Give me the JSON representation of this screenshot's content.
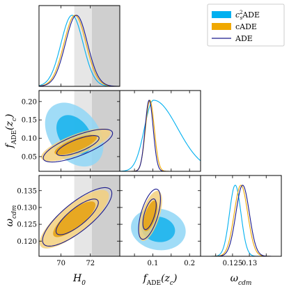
{
  "chart_data": {
    "type": "triangle-corner",
    "title": "",
    "parameters": [
      {
        "id": "H0",
        "label_main": "H",
        "label_sub": "0",
        "range": [
          68.5,
          74.0
        ],
        "ticks": [
          70,
          72
        ],
        "tick_labels": [
          "70",
          "72"
        ]
      },
      {
        "id": "fADE",
        "label_main": "f",
        "label_sub": "ADE",
        "label_tail": "(z",
        "label_tail_sub": "c",
        "label_end": ")",
        "range": [
          0.01,
          0.23
        ],
        "ticks": [
          0.05,
          0.1,
          0.15,
          0.2
        ],
        "tick_labels": [
          "0.05",
          "0.10",
          "0.15",
          "0.20"
        ],
        "x_tick_labels": [
          "",
          "0.1",
          "",
          "0.2"
        ]
      },
      {
        "id": "wcdm",
        "label_main": "ω",
        "label_sub": "cdm",
        "range": [
          0.1155,
          0.1395
        ],
        "ticks": [
          0.12,
          0.125,
          0.13,
          0.135
        ],
        "tick_labels": [
          "0.120",
          "0.125",
          "0.130",
          "0.135"
        ],
        "x_tick_labels": [
          "",
          "0.125",
          "0.13",
          ""
        ]
      }
    ],
    "bands": [
      {
        "param": "H0",
        "from": 70.9,
        "to": 72.1,
        "color": "#e6e6e6"
      },
      {
        "param": "H0",
        "from": 72.1,
        "to": 74.0,
        "color": "#cfcfcf"
      }
    ],
    "legend": {
      "position": "top-right",
      "entries": [
        {
          "label_main": "c",
          "label_sub": "s",
          "label_sup": "2",
          "label_tail": "ADE",
          "color": "#00b0f0",
          "style": "filled"
        },
        {
          "label_main": "cADE",
          "color": "#f0a800",
          "style": "filled"
        },
        {
          "label_main": "ADE",
          "color": "#1a1a8c",
          "style": "line"
        }
      ]
    },
    "series": [
      {
        "id": "cs2ADE",
        "color": "#00b0f0",
        "fill_outer": "#8fd6f6",
        "fill_inner": "#1cb4ec",
        "marginals": {
          "H0": {
            "mean": 70.75,
            "sigma": 0.75
          },
          "fADE": {
            "mean": 0.102,
            "sigma": 0.025,
            "skew": 0.045
          },
          "wcdm": {
            "mean": 0.1258,
            "sigma": 0.0017
          }
        },
        "contours": {
          "H0-fADE": {
            "center": [
              70.9,
              0.11
            ],
            "sigma": [
              0.8,
              0.035
            ],
            "rho": -0.35
          },
          "H0-wcdm": null,
          "fADE-wcdm": {
            "center": [
              0.115,
              0.1235
            ],
            "sigma": [
              0.03,
              0.0025
            ],
            "rho": -0.1
          }
        }
      },
      {
        "id": "cADE",
        "color": "#f0a800",
        "fill_outer": "#f3d07e",
        "fill_inner": "#e5a316",
        "marginals": {
          "H0": {
            "mean": 70.95,
            "sigma": 0.75
          },
          "fADE": {
            "mean": 0.092,
            "sigma": 0.012
          },
          "wcdm": {
            "mean": 0.1275,
            "sigma": 0.002
          }
        },
        "contours": {
          "H0-fADE": {
            "center": [
              71.0,
              0.082
            ],
            "sigma": [
              0.95,
              0.018
            ],
            "rho": 0.75
          },
          "H0-wcdm": {
            "center": [
              70.9,
              0.1265
            ],
            "sigma": [
              0.95,
              0.0035
            ],
            "rho": 0.8
          },
          "fADE-wcdm": {
            "center": [
              0.093,
              0.1275
            ],
            "sigma": [
              0.013,
              0.003
            ],
            "rho": 0.6
          }
        }
      },
      {
        "id": "ADE",
        "color": "#1a1a8c",
        "fill_outer": null,
        "fill_inner": null,
        "marginals": {
          "H0": {
            "mean": 71.05,
            "sigma": 0.75
          },
          "fADE": {
            "mean": 0.09,
            "sigma": 0.011
          },
          "wcdm": {
            "mean": 0.128,
            "sigma": 0.002
          }
        },
        "contours": {
          "H0-fADE": {
            "center": [
              71.15,
              0.08
            ],
            "sigma": [
              0.95,
              0.018
            ],
            "rho": 0.75
          },
          "H0-wcdm": {
            "center": [
              71.1,
              0.1272
            ],
            "sigma": [
              0.95,
              0.0035
            ],
            "rho": 0.8
          },
          "fADE-wcdm": {
            "center": [
              0.091,
              0.128
            ],
            "sigma": [
              0.012,
              0.003
            ],
            "rho": 0.6
          }
        }
      }
    ],
    "grid": false
  }
}
